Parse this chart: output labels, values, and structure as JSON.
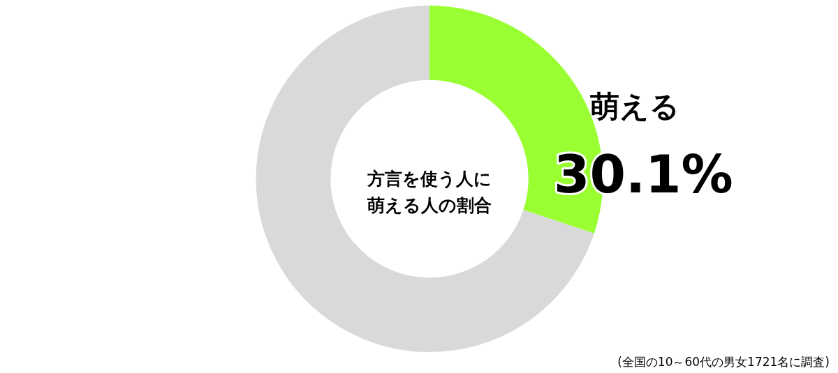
{
  "chart_data": {
    "type": "donut",
    "title": "方言を使う人に萌える人の割合",
    "categories": [
      "萌える",
      null
    ],
    "values": [
      30.1,
      69.9
    ],
    "colors": [
      "#99ff33",
      "#d9d9d9"
    ],
    "value_labels": [
      "30.1%",
      null
    ],
    "legend": false,
    "annotations": [
      "(全国の10～60代の男女1721名に調査)"
    ]
  }
}
